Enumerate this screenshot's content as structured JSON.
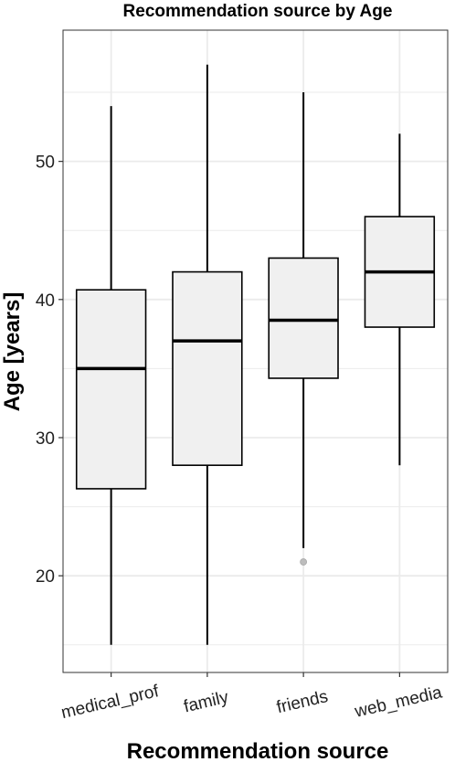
{
  "chart_data": {
    "type": "boxplot",
    "title": "Recommendation source by Age",
    "xlabel": "Recommendation source",
    "ylabel": "Age [years]",
    "categories": [
      "medical_prof",
      "family",
      "friends",
      "web_media"
    ],
    "boxes": [
      {
        "category": "medical_prof",
        "whisker_low": 15,
        "q1": 26.3,
        "median": 35,
        "q3": 40.7,
        "whisker_high": 54,
        "outliers": []
      },
      {
        "category": "family",
        "whisker_low": 15,
        "q1": 28,
        "median": 37,
        "q3": 42,
        "whisker_high": 57,
        "outliers": []
      },
      {
        "category": "friends",
        "whisker_low": 22,
        "q1": 34.3,
        "median": 38.5,
        "q3": 43,
        "whisker_high": 55,
        "outliers": [
          21
        ]
      },
      {
        "category": "web_media",
        "whisker_low": 28,
        "q1": 38,
        "median": 42,
        "q3": 46,
        "whisker_high": 52,
        "outliers": []
      }
    ],
    "y_ticks": [
      20,
      30,
      40,
      50
    ],
    "ylim": [
      13,
      59.5
    ],
    "grid": true,
    "legend": "none",
    "colors": {
      "box_fill": "#f0f0f0",
      "box_stroke": "#000000",
      "grid": "#ebebeb",
      "outlier": "#bdbdbd"
    }
  }
}
